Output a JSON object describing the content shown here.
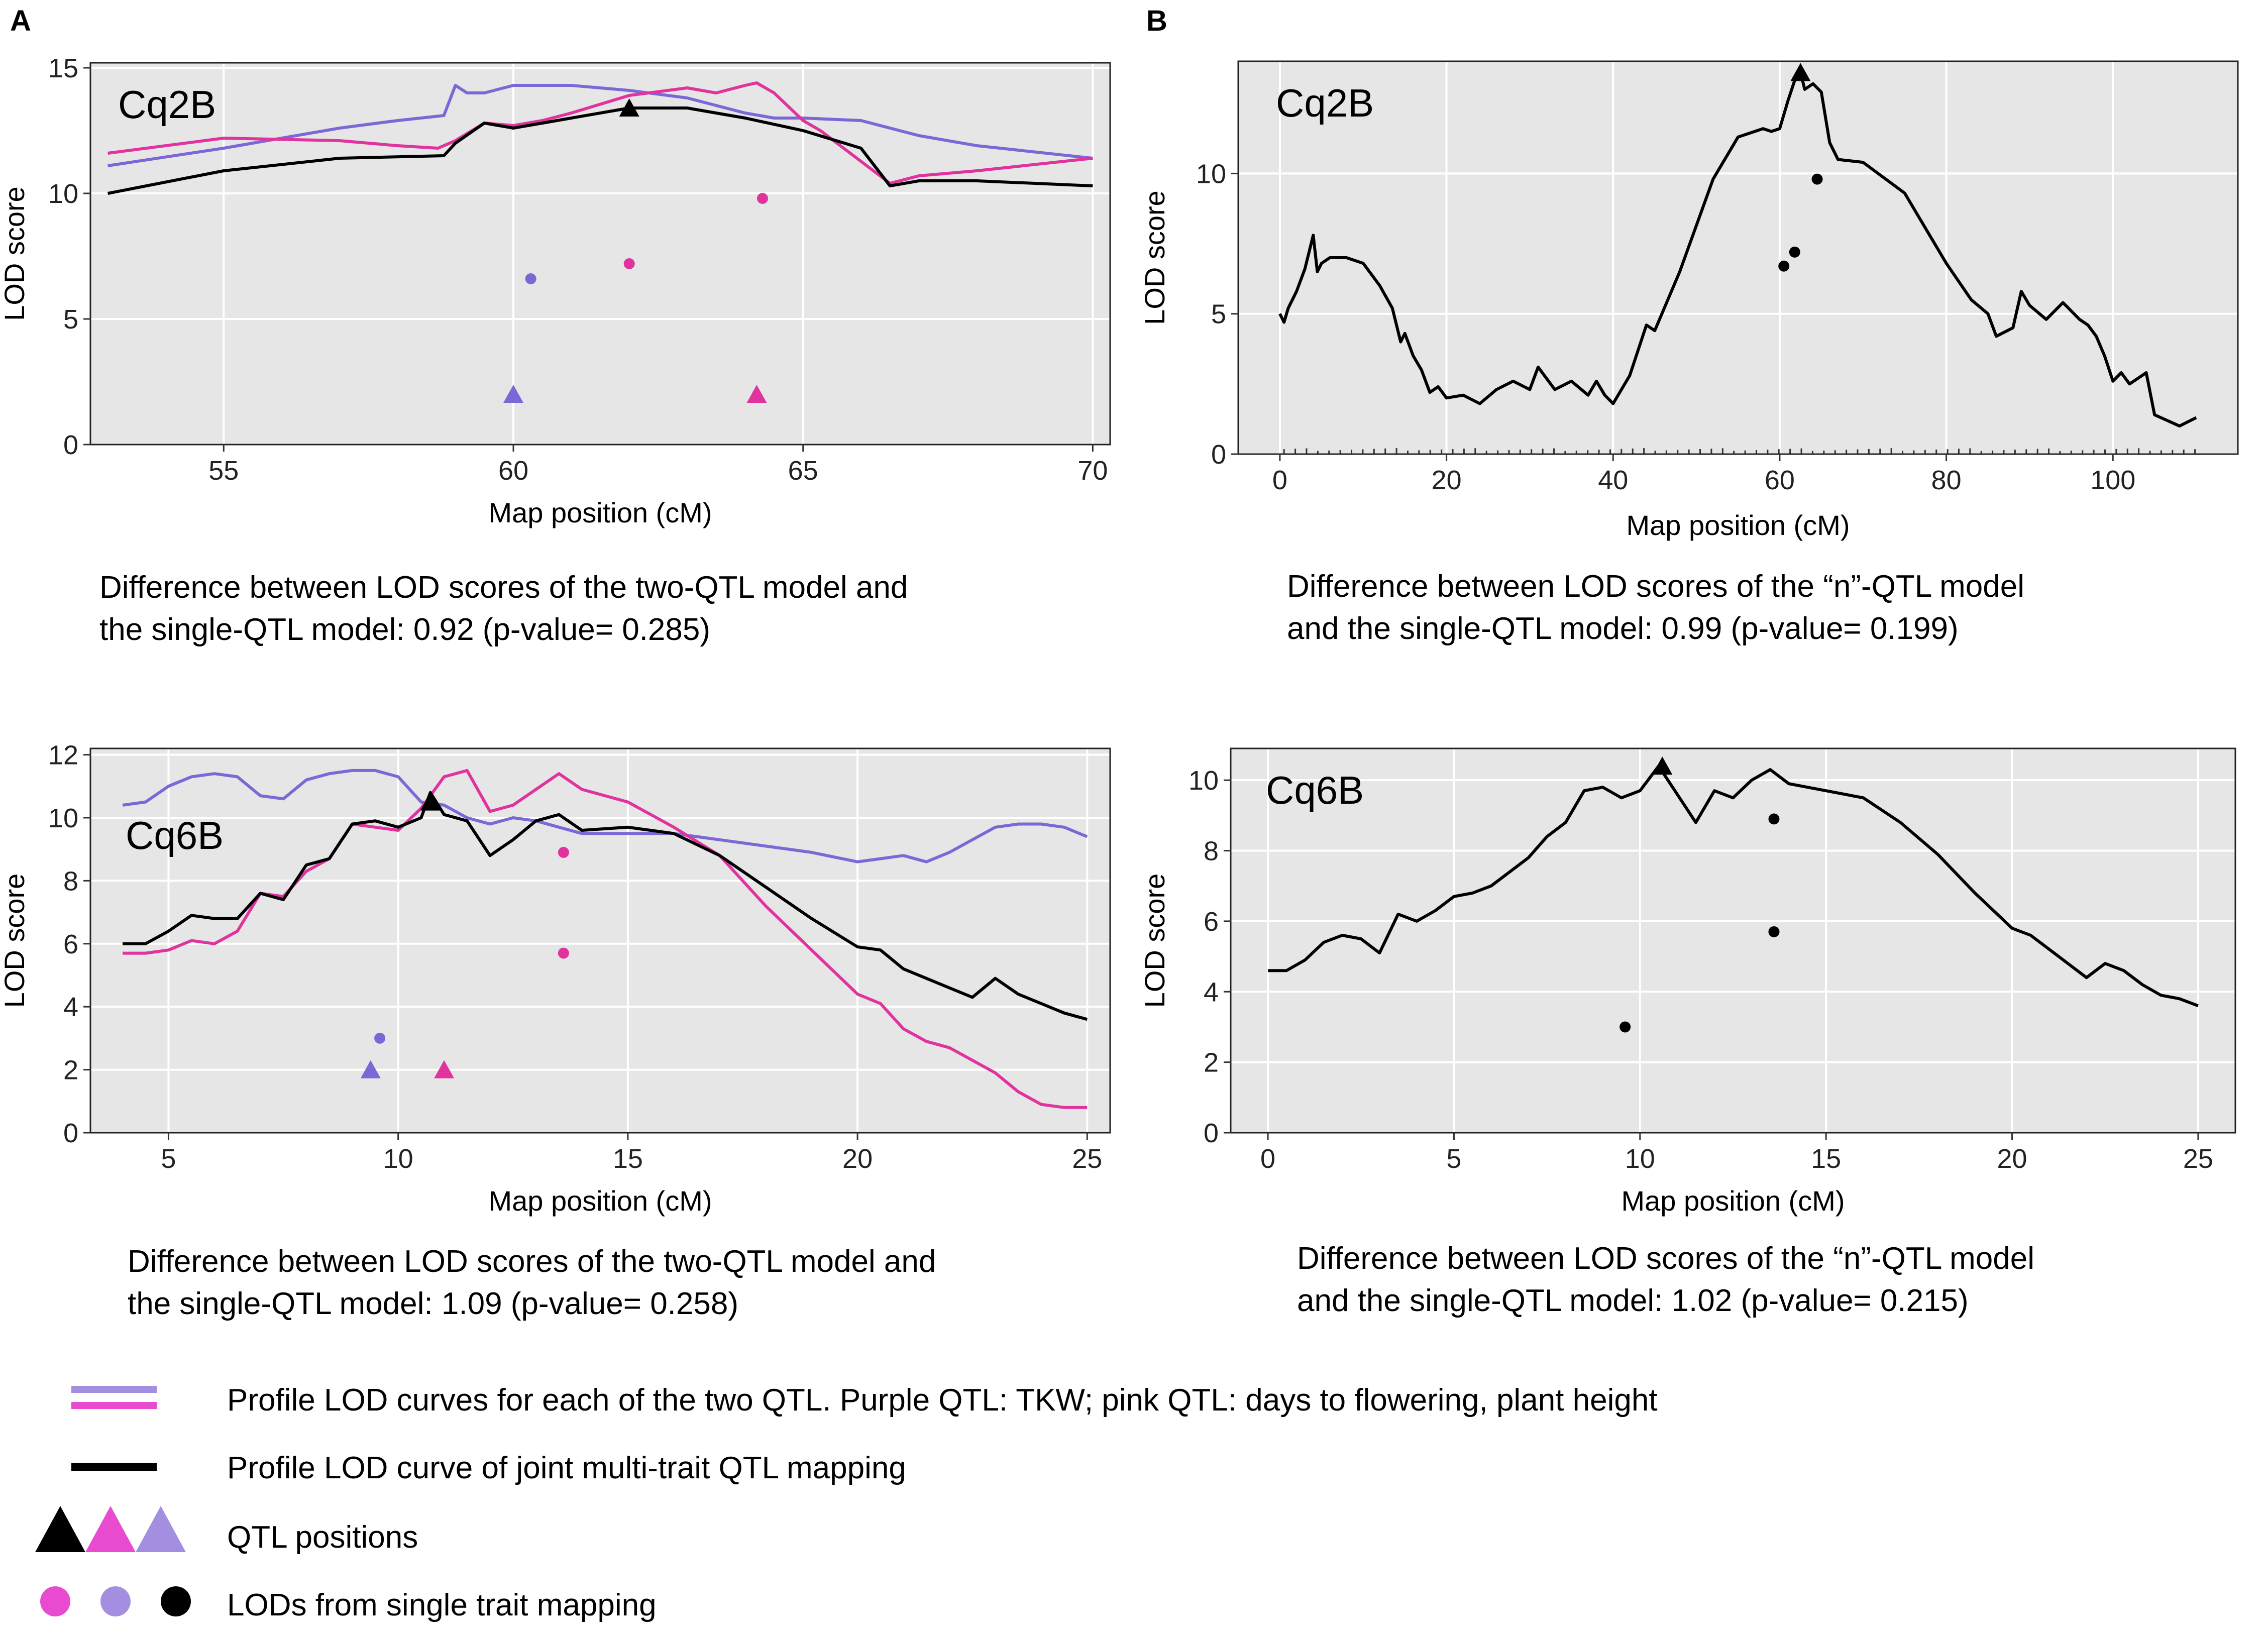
{
  "panels": {
    "A": "A",
    "B": "B"
  },
  "colors": {
    "purple": "#7b68d6",
    "pink": "#e0339e",
    "black": "#000000",
    "plot_bg": "#e6e6e6",
    "grid": "#ffffff"
  },
  "chart_data": [
    {
      "id": "A-cq2b",
      "type": "line",
      "title": "Cq2B",
      "xlabel": "Map position (cM)",
      "ylabel": "LOD score",
      "xlim": [
        52.7,
        70.3
      ],
      "ylim": [
        0,
        15.2
      ],
      "xticks": [
        55,
        60,
        65,
        70
      ],
      "yticks": [
        0,
        5,
        10,
        15
      ],
      "series": [
        {
          "name": "purple",
          "color": "#7b68d6",
          "x": [
            53,
            55,
            57,
            58,
            58.8,
            59,
            59.2,
            59.5,
            60,
            60.5,
            61,
            62,
            63,
            64,
            64.5,
            65,
            66,
            67,
            68,
            70
          ],
          "y": [
            11.1,
            11.8,
            12.6,
            12.9,
            13.1,
            14.3,
            14.0,
            14.0,
            14.3,
            14.3,
            14.3,
            14.1,
            13.8,
            13.2,
            13.0,
            13.0,
            12.9,
            12.3,
            11.9,
            11.4
          ]
        },
        {
          "name": "pink",
          "color": "#e0339e",
          "x": [
            53,
            55,
            57,
            58,
            58.7,
            59,
            59.5,
            60,
            60.5,
            61,
            62,
            63,
            63.5,
            64,
            64.2,
            64.5,
            65,
            65.3,
            66.5,
            67,
            68,
            70
          ],
          "y": [
            11.6,
            12.2,
            12.1,
            11.9,
            11.8,
            12.1,
            12.8,
            12.7,
            12.9,
            13.2,
            13.9,
            14.2,
            14.0,
            14.3,
            14.4,
            14.0,
            12.9,
            12.5,
            10.4,
            10.7,
            10.9,
            11.4
          ]
        },
        {
          "name": "black",
          "color": "#000000",
          "x": [
            53,
            55,
            57,
            58.8,
            59,
            59.5,
            60,
            60.5,
            61,
            62,
            63,
            63.5,
            64,
            65,
            66,
            66.5,
            67,
            68,
            70
          ],
          "y": [
            10.0,
            10.9,
            11.4,
            11.5,
            12.0,
            12.8,
            12.6,
            12.8,
            13.0,
            13.4,
            13.4,
            13.2,
            13.0,
            12.5,
            11.8,
            10.3,
            10.5,
            10.5,
            10.3
          ]
        }
      ],
      "qtl_triangles": [
        {
          "color": "#000000",
          "x": 62.0,
          "y": 13.4
        },
        {
          "color": "#7b68d6",
          "x": 60.0,
          "y": 2.0
        },
        {
          "color": "#e0339e",
          "x": 64.2,
          "y": 2.0
        }
      ],
      "single_trait_points": [
        {
          "color": "#7b68d6",
          "x": 60.3,
          "y": 6.6
        },
        {
          "color": "#e0339e",
          "x": 62.0,
          "y": 7.2
        },
        {
          "color": "#e0339e",
          "x": 64.3,
          "y": 9.8
        }
      ]
    },
    {
      "id": "B-cq2b",
      "type": "line",
      "title": "Cq2B",
      "xlabel": "Map position (cM)",
      "ylabel": "LOD score",
      "xlim": [
        -5,
        115
      ],
      "ylim": [
        0,
        14
      ],
      "xticks": [
        0,
        20,
        40,
        60,
        80,
        100
      ],
      "yticks": [
        0,
        5,
        10
      ],
      "series": [
        {
          "name": "black",
          "color": "#000000",
          "x": [
            0,
            0.5,
            1,
            2,
            3,
            4,
            4.5,
            5,
            6,
            8,
            10,
            12,
            13.5,
            14,
            14.5,
            15,
            16,
            17,
            18,
            19,
            20,
            22,
            24,
            26,
            28,
            30,
            31,
            33,
            35,
            37,
            38,
            39,
            40,
            42,
            44,
            45,
            48,
            52,
            55,
            58,
            59,
            60,
            61,
            62,
            62.5,
            63,
            64,
            65,
            65.5,
            66,
            67,
            70,
            75,
            80,
            83,
            85,
            86,
            88,
            89,
            90,
            92,
            94,
            96,
            97,
            98,
            99,
            100,
            101,
            102,
            104,
            105,
            108,
            110
          ],
          "y": [
            5.0,
            4.7,
            5.2,
            5.8,
            6.6,
            7.8,
            6.5,
            6.8,
            7.0,
            7.0,
            6.8,
            6.0,
            5.2,
            4.6,
            4.0,
            4.3,
            3.5,
            3.0,
            2.2,
            2.4,
            2.0,
            2.1,
            1.8,
            2.3,
            2.6,
            2.3,
            3.1,
            2.3,
            2.6,
            2.1,
            2.6,
            2.1,
            1.8,
            2.8,
            4.6,
            4.4,
            6.5,
            9.8,
            11.3,
            11.6,
            11.5,
            11.6,
            12.6,
            13.5,
            13.6,
            13.0,
            13.2,
            12.9,
            12.0,
            11.1,
            10.5,
            10.4,
            9.3,
            6.8,
            5.5,
            5.0,
            4.2,
            4.5,
            5.8,
            5.3,
            4.8,
            5.4,
            4.8,
            4.6,
            4.2,
            3.5,
            2.6,
            2.9,
            2.5,
            2.9,
            1.4,
            1.0,
            1.3
          ]
        }
      ],
      "qtl_triangles": [
        {
          "color": "#000000",
          "x": 62.5,
          "y": 13.6
        }
      ],
      "single_trait_points": [
        {
          "color": "#000000",
          "x": 60.5,
          "y": 6.7
        },
        {
          "color": "#000000",
          "x": 61.8,
          "y": 7.2
        },
        {
          "color": "#000000",
          "x": 64.5,
          "y": 9.8
        }
      ]
    },
    {
      "id": "A-cq6b",
      "type": "line",
      "title": "Cq6B",
      "xlabel": "Map position (cM)",
      "ylabel": "LOD score",
      "xlim": [
        3.3,
        25.5
      ],
      "ylim": [
        0,
        12.2
      ],
      "xticks": [
        5,
        10,
        15,
        20,
        25
      ],
      "yticks": [
        0,
        2,
        4,
        6,
        8,
        10,
        12
      ],
      "series": [
        {
          "name": "purple",
          "color": "#7b68d6",
          "x": [
            4,
            4.5,
            5,
            5.5,
            6,
            6.5,
            7,
            7.5,
            8,
            8.5,
            9,
            9.5,
            10,
            10.5,
            11,
            11.5,
            12,
            12.5,
            13,
            13.5,
            14,
            15,
            16,
            17,
            18,
            19,
            20,
            20.5,
            21,
            21.5,
            22,
            22.5,
            23,
            23.5,
            24,
            24.5,
            25
          ],
          "y": [
            10.4,
            10.5,
            11.0,
            11.3,
            11.4,
            11.3,
            10.7,
            10.6,
            11.2,
            11.4,
            11.5,
            11.5,
            11.3,
            10.5,
            10.4,
            10.0,
            9.8,
            10.0,
            9.9,
            9.7,
            9.5,
            9.5,
            9.5,
            9.3,
            9.1,
            8.9,
            8.6,
            8.7,
            8.8,
            8.6,
            8.9,
            9.3,
            9.7,
            9.8,
            9.8,
            9.7,
            9.4
          ]
        },
        {
          "name": "pink",
          "color": "#e0339e",
          "x": [
            4,
            4.5,
            5,
            5.5,
            6,
            6.5,
            7,
            7.5,
            8,
            8.5,
            9,
            9.5,
            10,
            10.5,
            11,
            11.5,
            12,
            12.5,
            13,
            13.5,
            14,
            15,
            16,
            17,
            18,
            19,
            20,
            20.5,
            21,
            21.5,
            22,
            22.5,
            23,
            23.5,
            24,
            24.5,
            25
          ],
          "y": [
            5.7,
            5.7,
            5.8,
            6.1,
            6.0,
            6.4,
            7.6,
            7.5,
            8.3,
            8.7,
            9.8,
            9.7,
            9.6,
            10.3,
            11.3,
            11.5,
            10.2,
            10.4,
            10.9,
            11.4,
            10.9,
            10.5,
            9.7,
            8.8,
            7.2,
            5.8,
            4.4,
            4.1,
            3.3,
            2.9,
            2.7,
            2.3,
            1.9,
            1.3,
            0.9,
            0.8,
            0.8
          ]
        },
        {
          "name": "black",
          "color": "#000000",
          "x": [
            4,
            4.5,
            5,
            5.5,
            6,
            6.5,
            7,
            7.5,
            8,
            8.5,
            9,
            9.5,
            10,
            10.5,
            10.7,
            11,
            11.5,
            12,
            12.5,
            13,
            13.5,
            14,
            15,
            16,
            17,
            18,
            19,
            20,
            20.5,
            21,
            21.5,
            22,
            22.5,
            23,
            23.5,
            24,
            24.5,
            25
          ],
          "y": [
            6.0,
            6.0,
            6.4,
            6.9,
            6.8,
            6.8,
            7.6,
            7.4,
            8.5,
            8.7,
            9.8,
            9.9,
            9.7,
            10.0,
            10.8,
            10.1,
            9.9,
            8.8,
            9.3,
            9.9,
            10.1,
            9.6,
            9.7,
            9.5,
            8.8,
            7.8,
            6.8,
            5.9,
            5.8,
            5.2,
            4.9,
            4.6,
            4.3,
            4.9,
            4.4,
            4.1,
            3.8,
            3.6
          ]
        }
      ],
      "qtl_triangles": [
        {
          "color": "#000000",
          "x": 10.7,
          "y": 10.5
        },
        {
          "color": "#7b68d6",
          "x": 9.4,
          "y": 2.0
        },
        {
          "color": "#e0339e",
          "x": 11.0,
          "y": 2.0
        }
      ],
      "single_trait_points": [
        {
          "color": "#7b68d6",
          "x": 9.6,
          "y": 3.0
        },
        {
          "color": "#e0339e",
          "x": 13.6,
          "y": 5.7
        },
        {
          "color": "#e0339e",
          "x": 13.6,
          "y": 8.9
        }
      ]
    },
    {
      "id": "B-cq6b",
      "type": "line",
      "title": "Cq6B",
      "xlabel": "Map position (cM)",
      "ylabel": "LOD score",
      "xlim": [
        -1.0,
        26.0
      ],
      "ylim": [
        0,
        10.9
      ],
      "xticks": [
        0,
        5,
        10,
        15,
        20,
        25
      ],
      "yticks": [
        0,
        2,
        4,
        6,
        8,
        10
      ],
      "series": [
        {
          "name": "black",
          "color": "#000000",
          "x": [
            0,
            0.5,
            1,
            1.5,
            2,
            2.5,
            3,
            3.5,
            4,
            4.5,
            5,
            5.5,
            6,
            6.5,
            7,
            7.5,
            8,
            8.5,
            9,
            9.5,
            10,
            10.5,
            11,
            11.5,
            12,
            12.5,
            13,
            13.5,
            14,
            15,
            16,
            17,
            18,
            19,
            20,
            20.5,
            21,
            21.5,
            22,
            22.5,
            23,
            23.5,
            24,
            24.5,
            25
          ],
          "y": [
            4.6,
            4.6,
            4.9,
            5.4,
            5.6,
            5.5,
            5.1,
            6.2,
            6.0,
            6.3,
            6.7,
            6.8,
            7.0,
            7.4,
            7.8,
            8.4,
            8.8,
            9.7,
            9.8,
            9.5,
            9.7,
            10.4,
            9.6,
            8.8,
            9.7,
            9.5,
            10.0,
            10.3,
            9.9,
            9.7,
            9.5,
            8.8,
            7.9,
            6.8,
            5.8,
            5.6,
            5.2,
            4.8,
            4.4,
            4.8,
            4.6,
            4.2,
            3.9,
            3.8,
            3.6
          ]
        }
      ],
      "qtl_triangles": [
        {
          "color": "#000000",
          "x": 10.6,
          "y": 10.4
        }
      ],
      "single_trait_points": [
        {
          "color": "#000000",
          "x": 9.6,
          "y": 3.0
        },
        {
          "color": "#000000",
          "x": 13.6,
          "y": 5.7
        },
        {
          "color": "#000000",
          "x": 13.6,
          "y": 8.9
        }
      ]
    }
  ],
  "captions": {
    "a1": {
      "line1": "Difference between LOD scores of the two-QTL model and",
      "line2": "the single-QTL model: 0.92 (p-value= 0.285)"
    },
    "b1": {
      "line1": "Difference between LOD scores of the “n”-QTL model",
      "line2": "and the single-QTL model: 0.99 (p-value= 0.199)"
    },
    "a2": {
      "line1": "Difference between LOD scores of the two-QTL model and",
      "line2": "the single-QTL model: 1.09 (p-value= 0.258)"
    },
    "b2": {
      "line1": "Difference between LOD scores of the “n”-QTL model",
      "line2": "and the single-QTL model: 1.02 (p-value= 0.215)"
    }
  },
  "legend": {
    "profile_curves": "Profile LOD curves for each of the two QTL. Purple QTL: TKW; pink QTL: days to flowering, plant height",
    "joint_curve": "Profile LOD curve of joint multi-trait QTL mapping",
    "qtl_positions": "QTL  positions",
    "single_trait": "LODs from single trait mapping"
  }
}
